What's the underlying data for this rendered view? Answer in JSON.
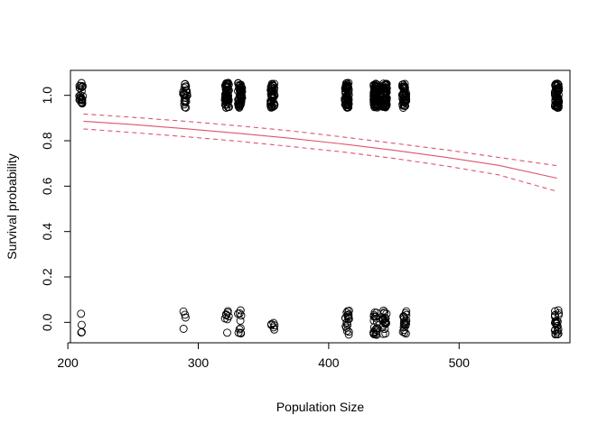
{
  "chart_data": {
    "type": "scatter",
    "title": "",
    "xlabel": "Population Size",
    "ylabel": "Survival probability",
    "xlim": [
      202,
      585
    ],
    "ylim": [
      -0.09,
      1.11
    ],
    "x_ticks": [
      200,
      300,
      400,
      500
    ],
    "y_ticks": [
      0.0,
      0.2,
      0.4,
      0.6,
      0.8,
      1.0
    ],
    "x_tick_labels": [
      "200",
      "300",
      "400",
      "500"
    ],
    "y_tick_labels": [
      "0.0",
      "0.2",
      "0.4",
      "0.6",
      "0.8",
      "1.0"
    ],
    "grid": false,
    "legend": "none",
    "point_groups": [
      {
        "x": 210,
        "n_survived": 22,
        "n_died": 4
      },
      {
        "x": 290,
        "n_survived": 24,
        "n_died": 4
      },
      {
        "x": 322,
        "n_survived": 60,
        "n_died": 8
      },
      {
        "x": 332,
        "n_survived": 50,
        "n_died": 10
      },
      {
        "x": 357,
        "n_survived": 45,
        "n_died": 6
      },
      {
        "x": 414,
        "n_survived": 60,
        "n_died": 20
      },
      {
        "x": 436,
        "n_survived": 70,
        "n_died": 20
      },
      {
        "x": 443,
        "n_survived": 70,
        "n_died": 20
      },
      {
        "x": 458,
        "n_survived": 45,
        "n_died": 20
      },
      {
        "x": 575,
        "n_survived": 60,
        "n_died": 25
      }
    ],
    "series": [
      {
        "style": "solid",
        "x": [
          212,
          250,
          290,
          330,
          370,
          410,
          450,
          490,
          530,
          575
        ],
        "y": [
          0.886,
          0.871,
          0.853,
          0.833,
          0.811,
          0.786,
          0.758,
          0.727,
          0.692,
          0.635
        ]
      },
      {
        "style": "dashed",
        "x": [
          212,
          250,
          290,
          330,
          370,
          410,
          450,
          490,
          530,
          575
        ],
        "y": [
          0.918,
          0.903,
          0.886,
          0.866,
          0.844,
          0.817,
          0.789,
          0.76,
          0.727,
          0.69
        ]
      },
      {
        "style": "dashed",
        "x": [
          212,
          250,
          290,
          330,
          370,
          410,
          450,
          490,
          530,
          575
        ],
        "y": [
          0.852,
          0.836,
          0.818,
          0.798,
          0.775,
          0.751,
          0.722,
          0.689,
          0.65,
          0.577
        ]
      }
    ],
    "colors": {
      "points": "#000000",
      "fit": "#DF536B",
      "axis": "#000000"
    }
  }
}
